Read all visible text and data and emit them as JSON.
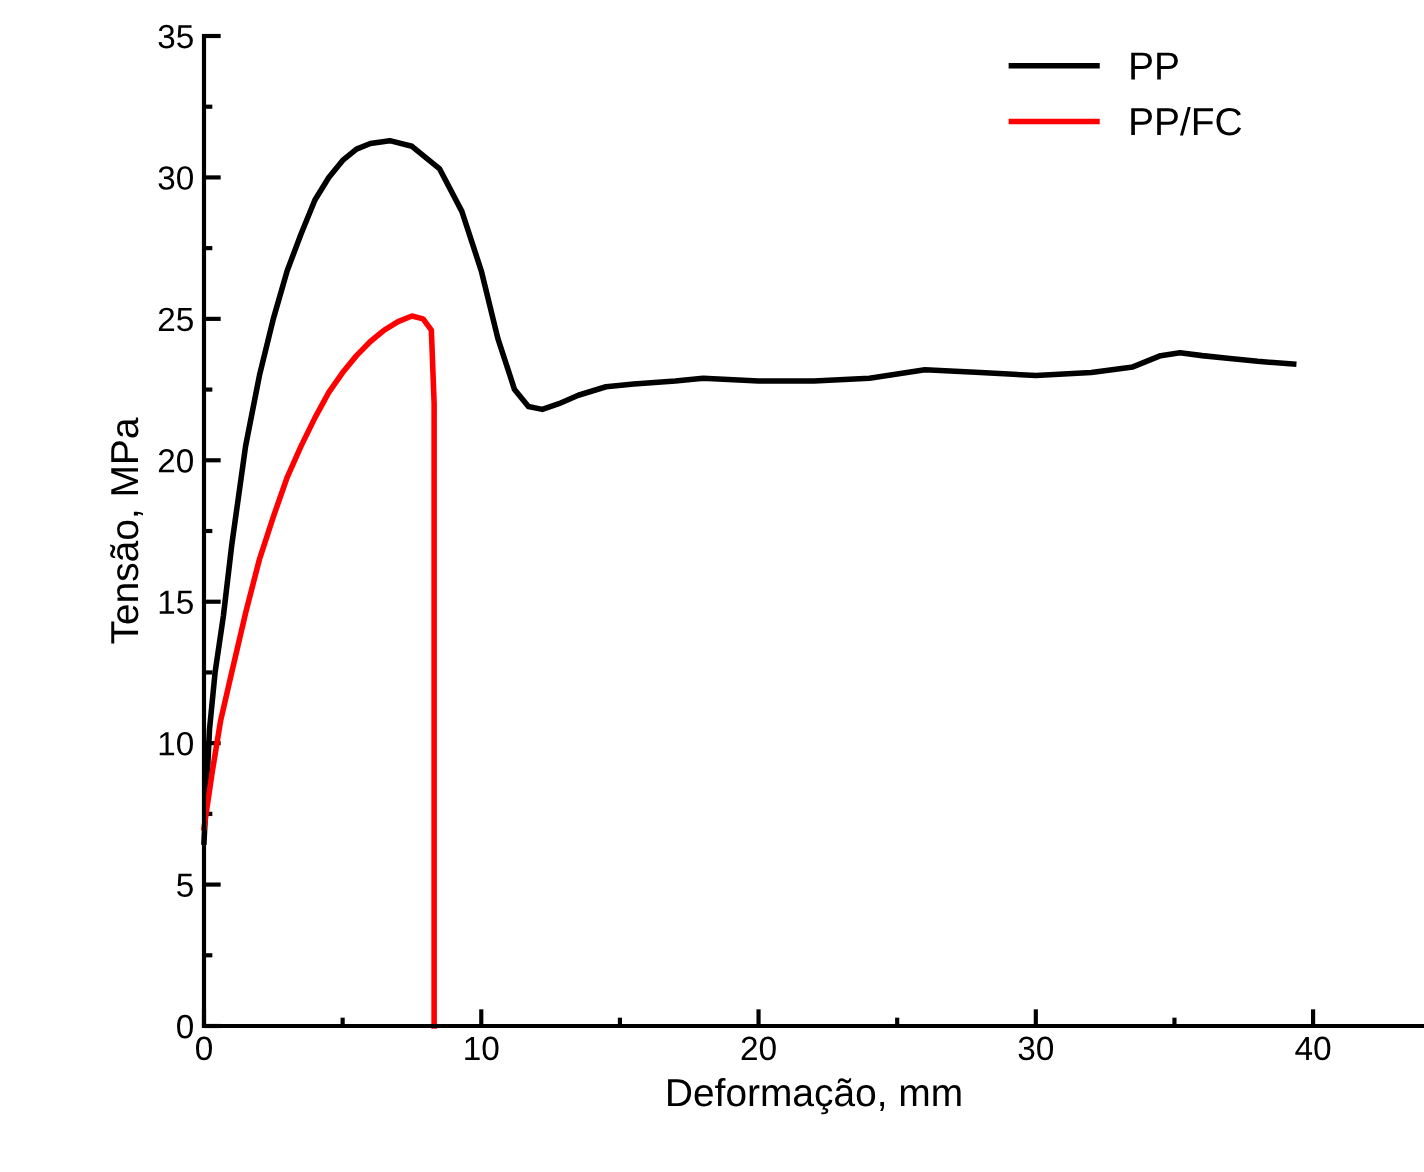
{
  "chart_data": {
    "type": "line",
    "xlabel": "Deformação, mm",
    "ylabel": "Tensão, MPa",
    "xlim": [
      0,
      44
    ],
    "xticks": [
      0,
      10,
      20,
      30,
      40
    ],
    "ylim": [
      0,
      35
    ],
    "yticks": [
      0,
      5,
      10,
      15,
      20,
      25,
      30,
      35
    ],
    "grid": false,
    "legend": "top right",
    "line_style": "solid",
    "marker": "none",
    "series": [
      {
        "name": "PP",
        "color": "#000000",
        "x": [
          0,
          0.2,
          0.4,
          0.7,
          1,
          1.5,
          2,
          2.5,
          3,
          3.5,
          4,
          4.5,
          5,
          5.5,
          6,
          6.7,
          7.5,
          8.5,
          9.3,
          10,
          10.6,
          11.2,
          11.7,
          12.2,
          12.8,
          13.5,
          14.5,
          15.5,
          17,
          18,
          20,
          22,
          24,
          26,
          28,
          30,
          32,
          33.5,
          34.5,
          35.2,
          36,
          37,
          38,
          39.3
        ],
        "values": [
          6.5,
          10.5,
          12.5,
          14.5,
          17,
          20.5,
          23,
          25,
          26.7,
          28,
          29.2,
          30,
          30.6,
          31,
          31.2,
          31.3,
          31.1,
          30.3,
          28.8,
          26.7,
          24.3,
          22.5,
          21.9,
          21.8,
          22,
          22.3,
          22.6,
          22.7,
          22.8,
          22.9,
          22.8,
          22.8,
          22.9,
          23.2,
          23.1,
          23,
          23.1,
          23.3,
          23.7,
          23.8,
          23.7,
          23.6,
          23.5,
          23.4
        ]
      },
      {
        "name": "PP/FC",
        "color": "#ff0000",
        "x": [
          0,
          0.3,
          0.6,
          1,
          1.5,
          2,
          2.5,
          3,
          3.5,
          4,
          4.5,
          5,
          5.5,
          6,
          6.5,
          7,
          7.5,
          7.9,
          8.2,
          8.3,
          8.3
        ],
        "values": [
          7,
          9,
          10.8,
          12.5,
          14.6,
          16.5,
          18,
          19.4,
          20.5,
          21.5,
          22.4,
          23.1,
          23.7,
          24.2,
          24.6,
          24.9,
          25.1,
          25,
          24.6,
          22,
          0
        ]
      }
    ]
  }
}
